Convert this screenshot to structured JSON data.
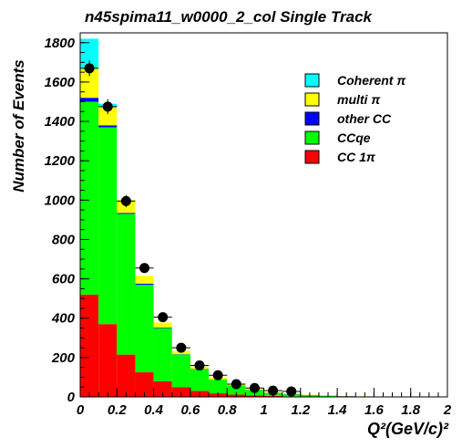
{
  "chart_data": {
    "type": "bar",
    "stacked": true,
    "title": "n45spima11_w0000_2_col Single Track",
    "ylabel": "Number of Events",
    "xlabel": "Q²(GeV/c)²",
    "xlim": [
      0,
      2
    ],
    "ylim": [
      0,
      1850
    ],
    "x_ticks": [
      "0",
      "0.2",
      "0.4",
      "0.6",
      "0.8",
      "1",
      "1.2",
      "1.4",
      "1.6",
      "1.8",
      "2"
    ],
    "y_ticks": [
      "0",
      "200",
      "400",
      "600",
      "800",
      "1000",
      "1200",
      "1400",
      "1600",
      "1800"
    ],
    "bin_edges": [
      0,
      0.1,
      0.2,
      0.3,
      0.4,
      0.5,
      0.6,
      0.7,
      0.8,
      0.9,
      1.0,
      1.1,
      1.2,
      1.3,
      1.4,
      1.5,
      1.6,
      1.7,
      1.8,
      1.9,
      2.0
    ],
    "legend_position": "top-right",
    "legend_order": [
      "Coherent π",
      "multi π",
      "other CC",
      "CCqe",
      "CC 1π"
    ],
    "series": [
      {
        "name": "CC 1π",
        "color": "#ff0000",
        "values": [
          520,
          370,
          215,
          125,
          80,
          50,
          30,
          18,
          12,
          8,
          5,
          3,
          2,
          1,
          1,
          0,
          0,
          0,
          0,
          0
        ]
      },
      {
        "name": "CCqe",
        "color": "#00ff00",
        "values": [
          980,
          1000,
          715,
          445,
          270,
          165,
          110,
          70,
          45,
          27,
          15,
          10,
          6,
          4,
          2,
          2,
          1,
          1,
          0,
          0
        ]
      },
      {
        "name": "other CC",
        "color": "#0000ff",
        "values": [
          20,
          10,
          5,
          5,
          3,
          2,
          2,
          1,
          1,
          1,
          1,
          1,
          1,
          1,
          1,
          0,
          0,
          0,
          0,
          0
        ]
      },
      {
        "name": "multi π",
        "color": "#ffff00",
        "values": [
          150,
          90,
          65,
          40,
          25,
          17,
          12,
          8,
          6,
          4,
          3,
          3,
          2,
          2,
          1,
          1,
          1,
          0,
          0,
          0
        ]
      },
      {
        "name": "Coherent π",
        "color": "#00ffff",
        "values": [
          150,
          20,
          0,
          0,
          0,
          0,
          0,
          0,
          0,
          0,
          0,
          0,
          0,
          0,
          0,
          0,
          0,
          0,
          0,
          0
        ]
      }
    ],
    "data_points": {
      "x": [
        0.05,
        0.15,
        0.25,
        0.35,
        0.45,
        0.55,
        0.65,
        0.75,
        0.85,
        0.95,
        1.05,
        1.15
      ],
      "y": [
        1670,
        1475,
        995,
        655,
        405,
        250,
        160,
        110,
        65,
        45,
        32,
        28
      ],
      "yerr": [
        40,
        38,
        31,
        25,
        20,
        16,
        12,
        10,
        8,
        7,
        6,
        5
      ]
    }
  }
}
